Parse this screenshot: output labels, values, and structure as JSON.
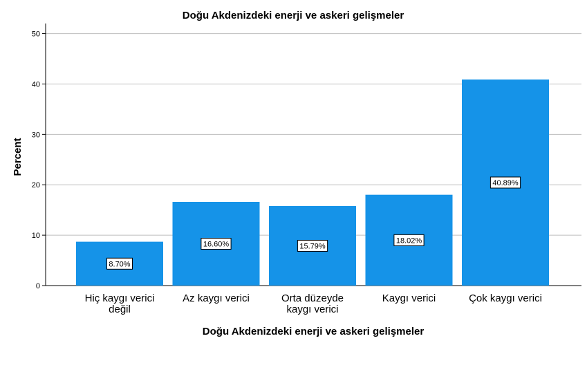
{
  "chart_data": {
    "type": "bar",
    "title": "Doğu Akdenizdeki enerji ve askeri gelişmeler",
    "xlabel": "Doğu Akdenizdeki enerji ve askeri gelişmeler",
    "ylabel": "Percent",
    "ylim": [
      0,
      52
    ],
    "yticks": [
      0,
      10,
      20,
      30,
      40,
      50
    ],
    "grid": true,
    "categories": [
      [
        "Hiç kaygı verici",
        "değil"
      ],
      [
        "Az kaygı verici"
      ],
      [
        "Orta düzeyde",
        "kaygı verici"
      ],
      [
        "Kaygı verici"
      ],
      [
        "Çok kaygı verici"
      ]
    ],
    "values": [
      8.7,
      16.6,
      15.79,
      18.02,
      40.89
    ],
    "data_labels": [
      "8.70%",
      "16.60%",
      "15.79%",
      "18.02%",
      "40.89%"
    ],
    "bar_color": "#1593e8"
  }
}
